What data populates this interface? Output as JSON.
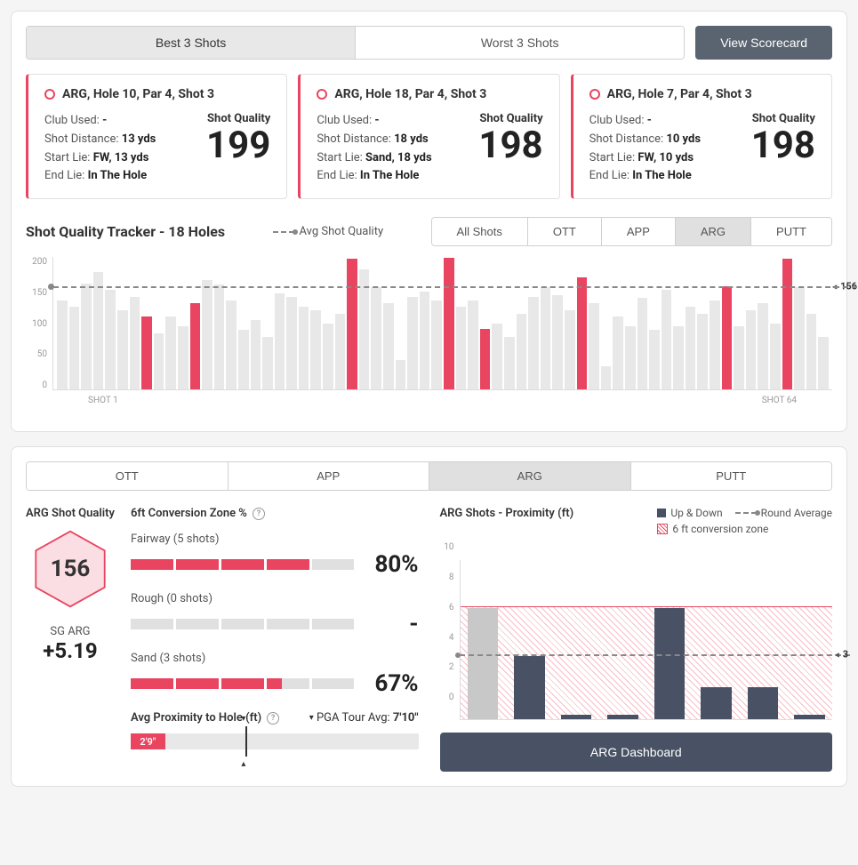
{
  "colors": {
    "accent": "#e94560",
    "bar_grey": "#e8e8e8",
    "dark": "#485264"
  },
  "topTabs": {
    "best": "Best 3 Shots",
    "worst": "Worst 3 Shots",
    "active": "best"
  },
  "scorecardBtn": "View Scorecard",
  "shotCards": [
    {
      "title": "ARG, Hole 10, Par 4, Shot 3",
      "club_label": "Club Used:",
      "club": "-",
      "dist_label": "Shot Distance:",
      "dist": "13 yds",
      "start_label": "Start Lie:",
      "start": "FW, 13 yds",
      "end_label": "End Lie:",
      "end": "In The Hole",
      "sq_label": "Shot Quality",
      "sq": "199"
    },
    {
      "title": "ARG, Hole 18, Par 4, Shot 3",
      "club_label": "Club Used:",
      "club": "-",
      "dist_label": "Shot Distance:",
      "dist": "18 yds",
      "start_label": "Start Lie:",
      "start": "Sand, 18 yds",
      "end_label": "End Lie:",
      "end": "In The Hole",
      "sq_label": "Shot Quality",
      "sq": "198"
    },
    {
      "title": "ARG, Hole 7, Par 4, Shot 3",
      "club_label": "Club Used:",
      "club": "-",
      "dist_label": "Shot Distance:",
      "dist": "10 yds",
      "start_label": "Start Lie:",
      "start": "FW, 10 yds",
      "end_label": "End Lie:",
      "end": "In The Hole",
      "sq_label": "Shot Quality",
      "sq": "198"
    }
  ],
  "tracker": {
    "title": "Shot Quality Tracker - 18 Holes",
    "legend": "Avg Shot Quality",
    "tabs": [
      "All Shots",
      "OTT",
      "APP",
      "ARG",
      "PUTT"
    ],
    "activeTab": "ARG",
    "yTicks": [
      "200",
      "150",
      "100",
      "50",
      "0"
    ],
    "avg": 156,
    "avgLabel": "156",
    "xStart": "SHOT 1",
    "xEnd": "SHOT 64",
    "bars": [
      {
        "v": 135,
        "hl": false
      },
      {
        "v": 125,
        "hl": false
      },
      {
        "v": 160,
        "hl": false
      },
      {
        "v": 178,
        "hl": false
      },
      {
        "v": 150,
        "hl": false
      },
      {
        "v": 120,
        "hl": false
      },
      {
        "v": 140,
        "hl": false
      },
      {
        "v": 110,
        "hl": true
      },
      {
        "v": 85,
        "hl": false
      },
      {
        "v": 110,
        "hl": false
      },
      {
        "v": 95,
        "hl": false
      },
      {
        "v": 130,
        "hl": true
      },
      {
        "v": 165,
        "hl": false
      },
      {
        "v": 158,
        "hl": false
      },
      {
        "v": 135,
        "hl": false
      },
      {
        "v": 90,
        "hl": false
      },
      {
        "v": 105,
        "hl": false
      },
      {
        "v": 80,
        "hl": false
      },
      {
        "v": 145,
        "hl": false
      },
      {
        "v": 140,
        "hl": false
      },
      {
        "v": 125,
        "hl": false
      },
      {
        "v": 120,
        "hl": false
      },
      {
        "v": 100,
        "hl": false
      },
      {
        "v": 115,
        "hl": false
      },
      {
        "v": 198,
        "hl": true
      },
      {
        "v": 182,
        "hl": false
      },
      {
        "v": 155,
        "hl": false
      },
      {
        "v": 130,
        "hl": false
      },
      {
        "v": 45,
        "hl": false
      },
      {
        "v": 140,
        "hl": false
      },
      {
        "v": 148,
        "hl": false
      },
      {
        "v": 135,
        "hl": false
      },
      {
        "v": 199,
        "hl": true
      },
      {
        "v": 125,
        "hl": false
      },
      {
        "v": 135,
        "hl": false
      },
      {
        "v": 92,
        "hl": true
      },
      {
        "v": 100,
        "hl": false
      },
      {
        "v": 80,
        "hl": false
      },
      {
        "v": 115,
        "hl": false
      },
      {
        "v": 140,
        "hl": false
      },
      {
        "v": 155,
        "hl": false
      },
      {
        "v": 142,
        "hl": false
      },
      {
        "v": 120,
        "hl": false
      },
      {
        "v": 170,
        "hl": true
      },
      {
        "v": 130,
        "hl": false
      },
      {
        "v": 35,
        "hl": false
      },
      {
        "v": 110,
        "hl": false
      },
      {
        "v": 95,
        "hl": false
      },
      {
        "v": 138,
        "hl": false
      },
      {
        "v": 90,
        "hl": false
      },
      {
        "v": 150,
        "hl": false
      },
      {
        "v": 95,
        "hl": false
      },
      {
        "v": 125,
        "hl": false
      },
      {
        "v": 115,
        "hl": false
      },
      {
        "v": 135,
        "hl": false
      },
      {
        "v": 156,
        "hl": true
      },
      {
        "v": 95,
        "hl": false
      },
      {
        "v": 120,
        "hl": false
      },
      {
        "v": 130,
        "hl": false
      },
      {
        "v": 100,
        "hl": false
      },
      {
        "v": 198,
        "hl": true
      },
      {
        "v": 155,
        "hl": false
      },
      {
        "v": 115,
        "hl": false
      },
      {
        "v": 80,
        "hl": false
      }
    ]
  },
  "bottom": {
    "tabs": [
      "OTT",
      "APP",
      "ARG",
      "PUTT"
    ],
    "activeTab": "ARG",
    "sq": {
      "label": "ARG Shot Quality",
      "value": "156",
      "sgLabel": "SG ARG",
      "sg": "+5.19"
    },
    "conv": {
      "header": "6ft Conversion Zone %",
      "rows": [
        {
          "label": "Fairway (5 shots)",
          "fill": 4,
          "total": 5,
          "pct": "80%"
        },
        {
          "label": "Rough (0 shots)",
          "fill": 0,
          "total": 5,
          "pct": "-"
        },
        {
          "label": "Sand (3 shots)",
          "fill": 3,
          "total": 5,
          "pct": "67%",
          "fillPartial": 0.35
        }
      ]
    },
    "prox": {
      "label": "Avg Proximity to Hole (ft)",
      "value": "2'9\"",
      "fillPct": 12,
      "markerPct": 40,
      "pgaLabel": "PGA Tour Avg:",
      "pga": "7'10\""
    },
    "proxChart": {
      "title": "ARG Shots - Proximity (ft)",
      "legUpDown": "Up & Down",
      "legAvg": "Round Average",
      "legZone": "6 ft conversion zone",
      "yMax": 10,
      "yTicks": [
        "10",
        "8",
        "6",
        "4",
        "2",
        "0"
      ],
      "zoneTop": 6,
      "avg": 3,
      "avgLabel": "3",
      "bars": [
        {
          "v": 7,
          "grey": true
        },
        {
          "v": 4,
          "grey": false
        },
        {
          "v": 0.3,
          "grey": false
        },
        {
          "v": 0.3,
          "grey": false
        },
        {
          "v": 7,
          "grey": false
        },
        {
          "v": 2,
          "grey": false
        },
        {
          "v": 2,
          "grey": false
        },
        {
          "v": 0.3,
          "grey": false
        }
      ],
      "dashBtn": "ARG Dashboard"
    }
  }
}
